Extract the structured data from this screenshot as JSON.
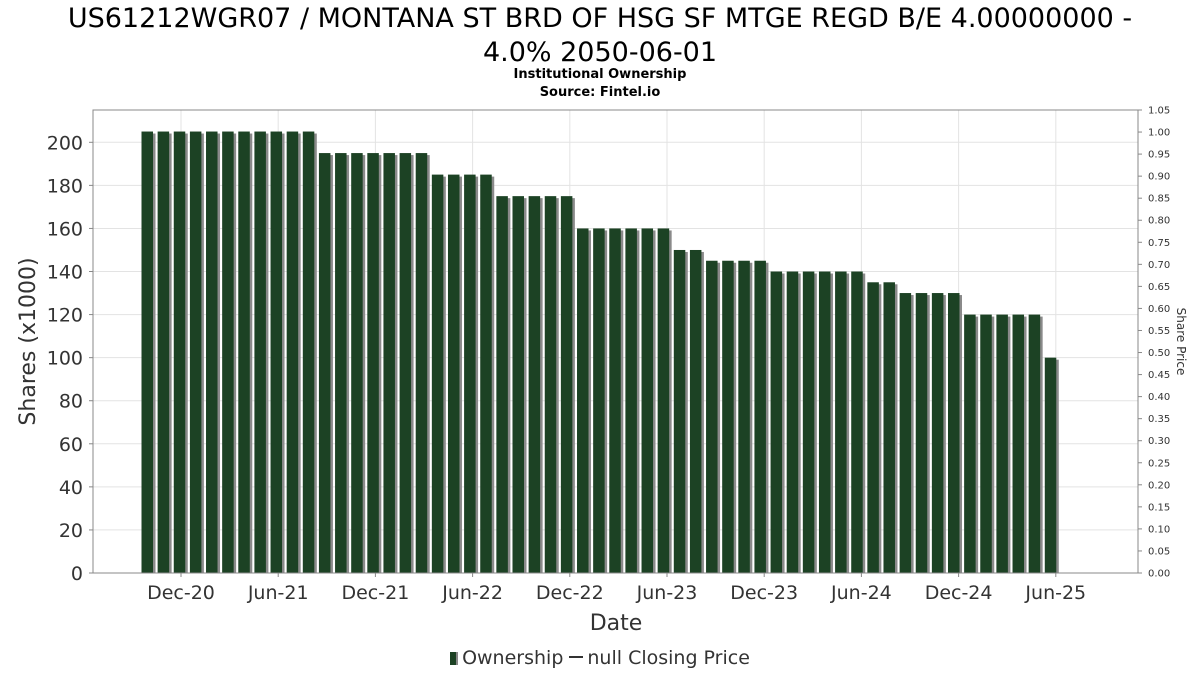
{
  "title_line1": "US61212WGR07 / MONTANA ST BRD OF HSG SF MTGE REGD B/E 4.00000000 -",
  "title_line2": "4.0% 2050-06-01",
  "subtitle1": "Institutional Ownership",
  "subtitle2": "Source: Fintel.io",
  "legend": {
    "ownership": "Ownership",
    "price": "null Closing Price"
  },
  "colors": {
    "bar": "#1c4224",
    "bar_shadow": "#8a8a8a",
    "grid": "#e3e3e3",
    "axis": "#888888"
  },
  "chart_data": {
    "type": "bar",
    "xlabel": "Date",
    "ylabel": "Shares (x1000)",
    "y2label": "Share Price",
    "ylim": [
      0,
      215
    ],
    "y2lim": [
      0,
      1.05
    ],
    "yticks": [
      0,
      20,
      40,
      60,
      80,
      100,
      120,
      140,
      160,
      180,
      200
    ],
    "y2ticks": [
      "0.00",
      "0.05",
      "0.10",
      "0.15",
      "0.20",
      "0.25",
      "0.30",
      "0.35",
      "0.40",
      "0.45",
      "0.50",
      "0.55",
      "0.60",
      "0.65",
      "0.70",
      "0.75",
      "0.80",
      "0.85",
      "0.90",
      "0.95",
      "1.00",
      "1.05"
    ],
    "xticks": [
      "Dec-20",
      "Jun-21",
      "Dec-21",
      "Jun-22",
      "Dec-22",
      "Jun-23",
      "Dec-23",
      "Jun-24",
      "Dec-24",
      "Jun-25"
    ],
    "grid": true,
    "legend_position": "bottom",
    "series": [
      {
        "name": "Ownership",
        "values": [
          205,
          205,
          205,
          205,
          205,
          205,
          205,
          205,
          205,
          205,
          205,
          195,
          195,
          195,
          195,
          195,
          195,
          195,
          185,
          185,
          185,
          185,
          175,
          175,
          175,
          175,
          175,
          160,
          160,
          160,
          160,
          160,
          160,
          150,
          150,
          145,
          145,
          145,
          145,
          140,
          140,
          140,
          140,
          140,
          140,
          135,
          135,
          130,
          130,
          130,
          130,
          120,
          120,
          120,
          120,
          120,
          100
        ]
      }
    ]
  }
}
